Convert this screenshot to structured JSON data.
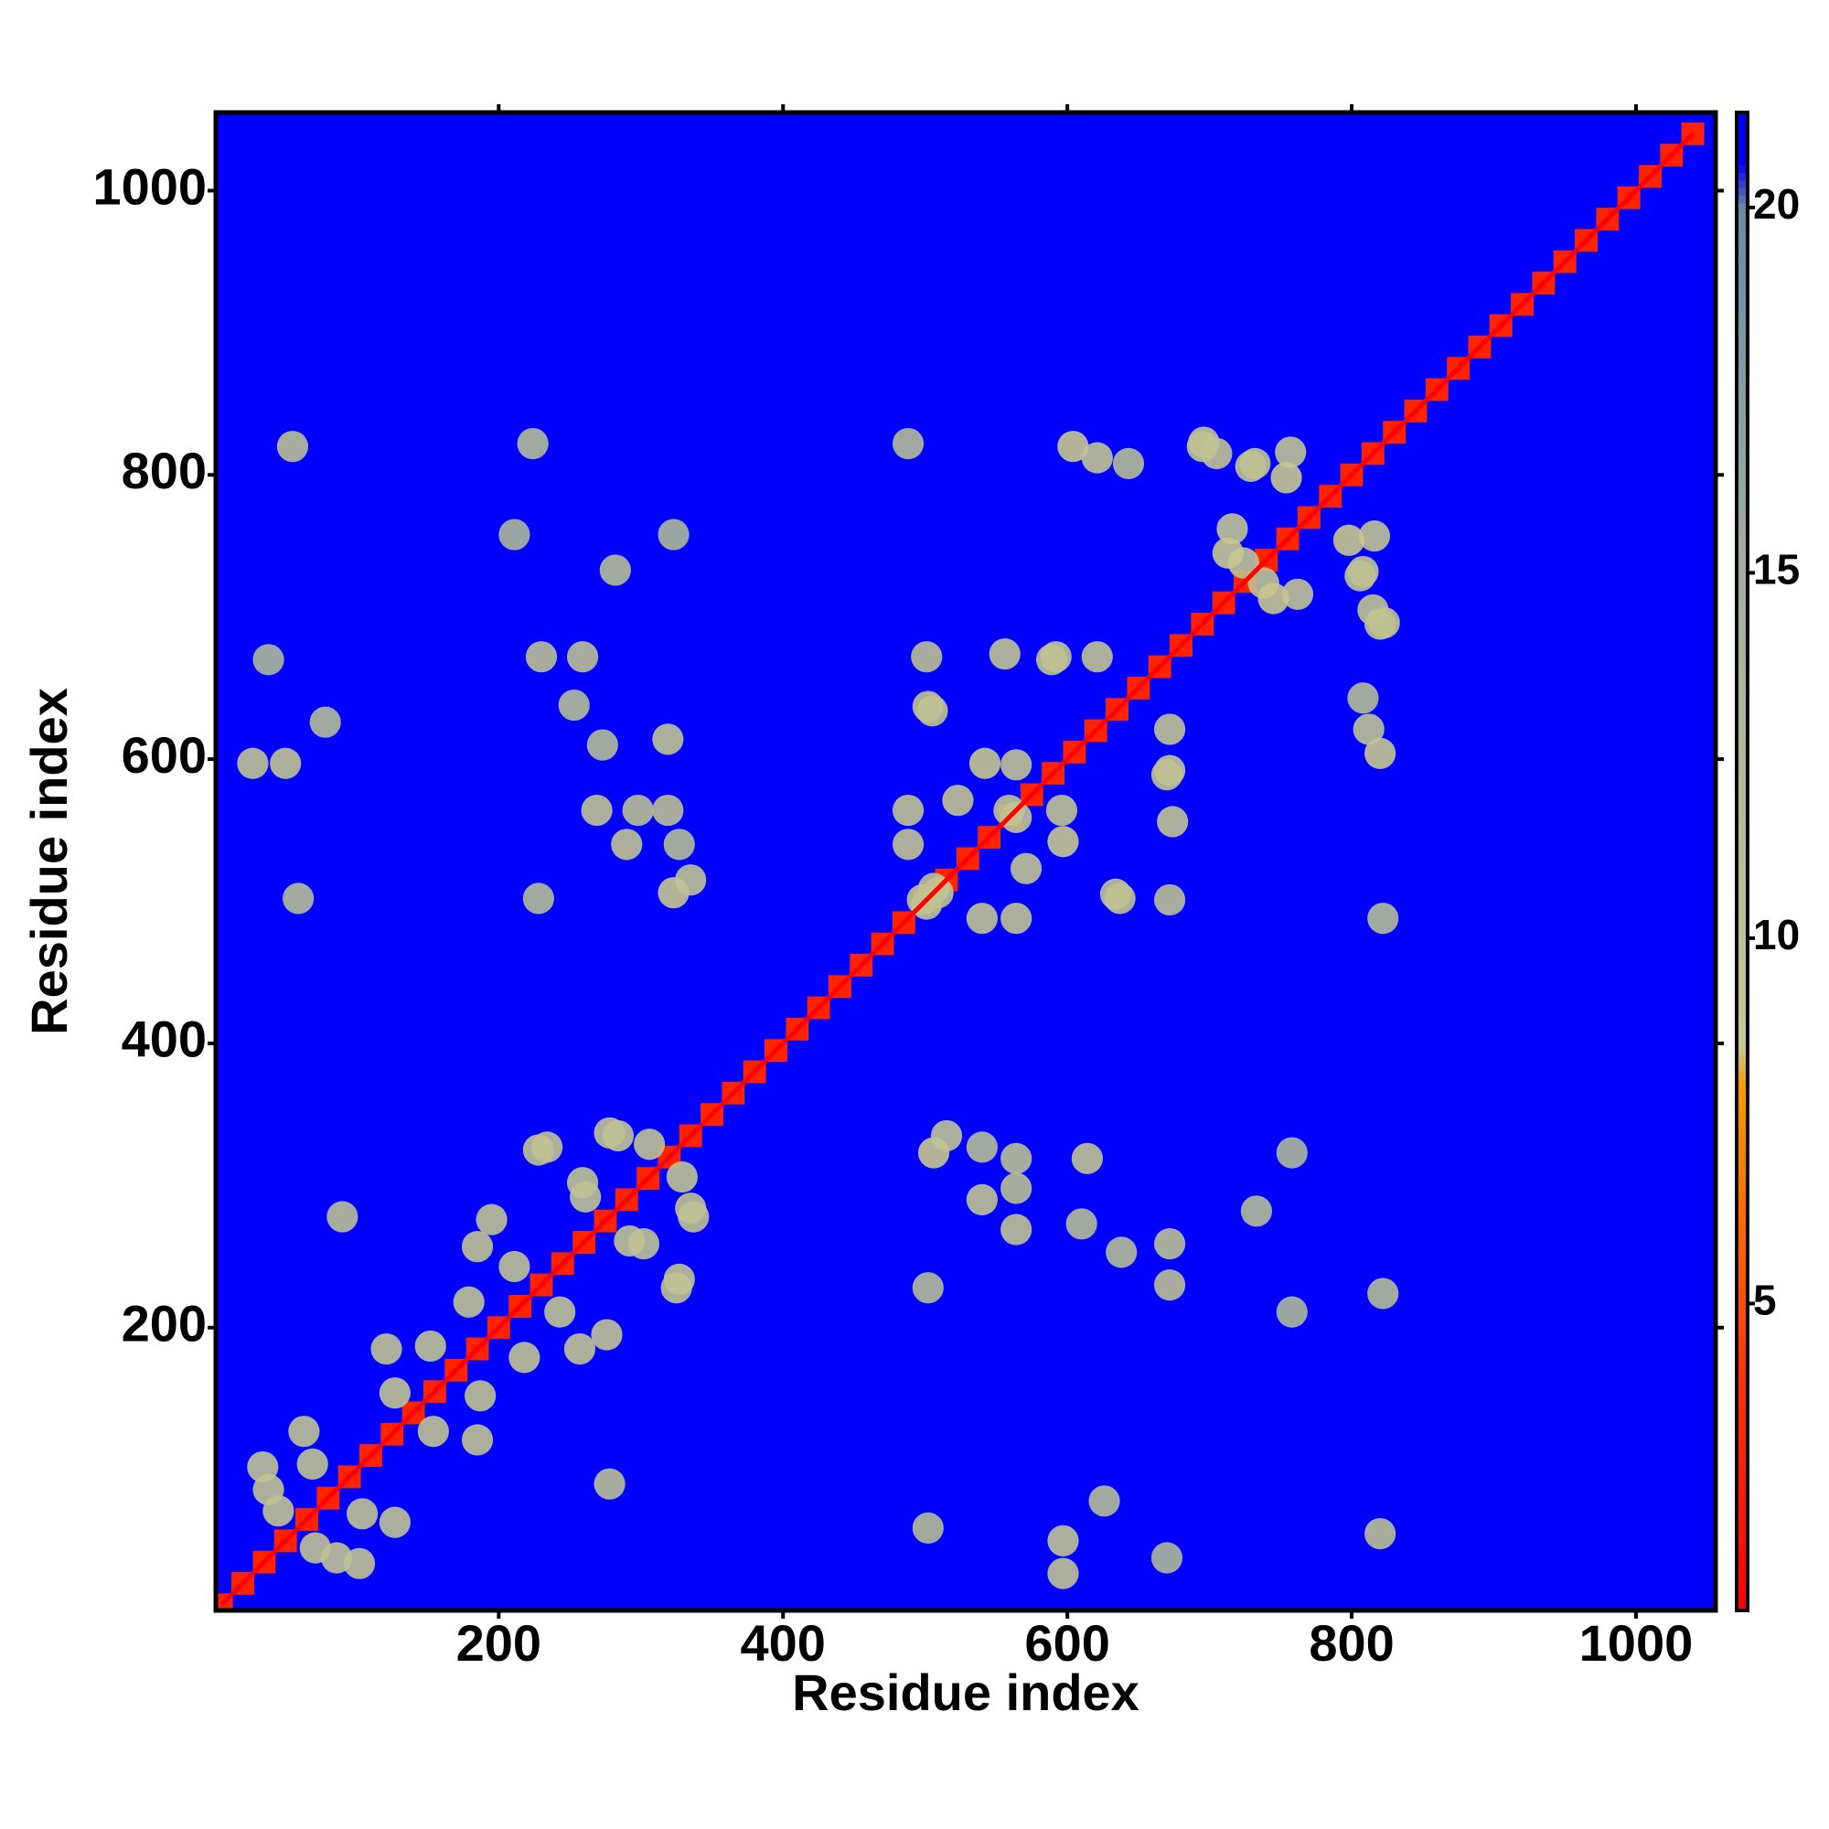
{
  "chart_data": {
    "type": "heatmap",
    "xlabel": "Residue index",
    "ylabel": "Residue index",
    "xlim": [
      1,
      1056
    ],
    "ylim": [
      1,
      1055
    ],
    "xticks": [
      200,
      400,
      600,
      800,
      1000
    ],
    "yticks": [
      200,
      400,
      600,
      800,
      1000
    ],
    "zlim": [
      0.8,
      21.3
    ],
    "zticks": [
      5,
      10,
      15,
      20
    ],
    "colorscale": [
      [
        0.8,
        "#ff0000"
      ],
      [
        4,
        "#ff3300"
      ],
      [
        8,
        "#ff9900"
      ],
      [
        8.5,
        "#c8c88c"
      ],
      [
        15,
        "#a0b0a0"
      ],
      [
        20,
        "#6a88a8"
      ],
      [
        20.6,
        "#0000ff"
      ]
    ],
    "symmetric": true,
    "x": [
      5,
      20,
      35,
      50,
      65,
      80,
      95,
      110,
      125,
      140,
      155,
      170,
      185,
      200,
      215,
      230,
      245,
      260,
      275,
      290,
      305,
      320,
      335,
      350,
      365,
      380,
      395,
      410,
      425,
      440,
      455,
      470,
      485,
      500,
      515,
      530,
      545,
      560,
      575,
      590,
      605,
      620,
      635,
      650,
      665,
      680,
      695,
      710,
      725,
      740,
      755,
      770,
      785,
      800,
      815,
      830,
      845,
      860,
      875,
      890,
      905,
      920,
      935,
      950,
      965,
      980,
      995,
      1010,
      1025,
      1040,
      55,
      224,
      27,
      50,
      78,
      38,
      230,
      259,
      253,
      211,
      323,
      282,
      269,
      298,
      319,
      290,
      327,
      323,
      335,
      273,
      319,
      228,
      59,
      488,
      604,
      621,
      643,
      695,
      732,
      757,
      716,
      724,
      745,
      754,
      729,
      705,
      696,
      501,
      592,
      621,
      505,
      488,
      488,
      509,
      542,
      559,
      571,
      501,
      637,
      589,
      556,
      564,
      90,
      38,
      34,
      63,
      121,
      179,
      195,
      228,
      278,
      306,
      211,
      261,
      45,
      69,
      127,
      152,
      185,
      234,
      284,
      259
    ],
    "y": [
      5,
      20,
      35,
      50,
      65,
      80,
      95,
      110,
      125,
      140,
      155,
      170,
      185,
      200,
      215,
      230,
      245,
      260,
      275,
      290,
      305,
      320,
      335,
      350,
      365,
      380,
      395,
      410,
      425,
      440,
      455,
      470,
      485,
      500,
      515,
      530,
      545,
      560,
      575,
      590,
      605,
      620,
      635,
      650,
      665,
      680,
      695,
      710,
      725,
      740,
      755,
      770,
      785,
      800,
      815,
      830,
      845,
      860,
      875,
      890,
      905,
      920,
      935,
      950,
      965,
      980,
      995,
      1010,
      1025,
      1040,
      820,
      822,
      597,
      597,
      626,
      670,
      672,
      672,
      638,
      758,
      758,
      733,
      564,
      564,
      564,
      540,
      540,
      506,
      515,
      610,
      614,
      502,
      502,
      822,
      820,
      812,
      808,
      820,
      808,
      816,
      762,
      738,
      713,
      798,
      806,
      815,
      823,
      672,
      672,
      672,
      634,
      564,
      540,
      506,
      597,
      564,
      523,
      498,
      502,
      670,
      674,
      596,
      278,
      86,
      102,
      127,
      185,
      218,
      276,
      325,
      337,
      329,
      243,
      292,
      71,
      104,
      154,
      187,
      257,
      327,
      335,
      302
    ],
    "values": [
      3,
      3,
      3,
      3,
      3,
      3,
      3,
      3,
      3,
      3,
      3,
      3,
      3,
      3,
      3,
      3,
      3,
      3,
      3,
      3,
      3,
      3,
      3,
      3,
      3,
      3,
      3,
      3,
      3,
      3,
      3,
      3,
      3,
      3,
      3,
      3,
      3,
      3,
      3,
      3,
      3,
      3,
      3,
      3,
      3,
      3,
      3,
      3,
      3,
      3,
      3,
      3,
      3,
      3,
      3,
      3,
      3,
      3,
      3,
      3,
      3,
      3,
      3,
      3,
      3,
      3,
      3,
      3,
      3,
      3,
      11,
      12,
      10,
      10,
      12,
      13,
      11,
      11,
      12,
      13,
      13,
      12,
      10,
      11,
      11,
      10,
      12,
      9,
      10,
      12,
      10,
      12,
      12,
      12,
      9,
      10,
      12,
      10,
      10,
      10,
      10,
      10,
      9,
      9,
      10,
      10,
      10,
      11,
      10,
      10,
      10,
      10,
      10,
      10,
      9,
      10,
      10,
      10,
      10,
      10,
      10,
      10,
      11,
      10,
      10,
      10,
      10,
      10,
      10,
      10,
      10,
      10,
      10,
      10,
      10,
      10,
      10,
      10,
      10,
      10,
      10,
      10
    ]
  }
}
